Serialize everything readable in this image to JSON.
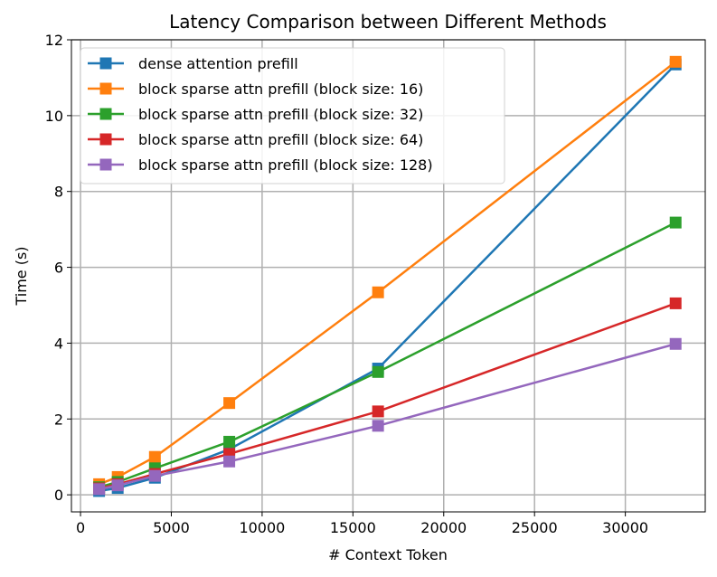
{
  "chart_data": {
    "type": "line",
    "title": "Latency Comparison between Different Methods",
    "xlabel": "# Context Token",
    "ylabel": "Time (s)",
    "xlim": [
      -500,
      34400
    ],
    "ylim": [
      -0.45,
      12
    ],
    "xticks": [
      0,
      5000,
      10000,
      15000,
      20000,
      25000,
      30000
    ],
    "yticks": [
      0,
      2,
      4,
      6,
      8,
      10,
      12
    ],
    "grid": true,
    "legend_position": "top-left",
    "x": [
      1024,
      2048,
      4096,
      8192,
      16384,
      32768
    ],
    "series": [
      {
        "name": "dense attention prefill",
        "color": "#1f77b4",
        "values": [
          0.1,
          0.18,
          0.45,
          1.2,
          3.33,
          11.35
        ]
      },
      {
        "name": "block sparse attn prefill (block size: 16)",
        "color": "#ff7f0e",
        "values": [
          0.28,
          0.47,
          1.0,
          2.42,
          5.34,
          11.42
        ]
      },
      {
        "name": "block sparse attn prefill (block size: 32)",
        "color": "#2ca02c",
        "values": [
          0.2,
          0.34,
          0.7,
          1.4,
          3.24,
          7.18
        ]
      },
      {
        "name": "block sparse attn prefill (block size: 64)",
        "color": "#d62728",
        "values": [
          0.17,
          0.28,
          0.55,
          1.08,
          2.2,
          5.05
        ]
      },
      {
        "name": "block sparse attn prefill (block size: 128)",
        "color": "#9467bd",
        "values": [
          0.15,
          0.25,
          0.5,
          0.88,
          1.82,
          3.98
        ]
      }
    ]
  }
}
